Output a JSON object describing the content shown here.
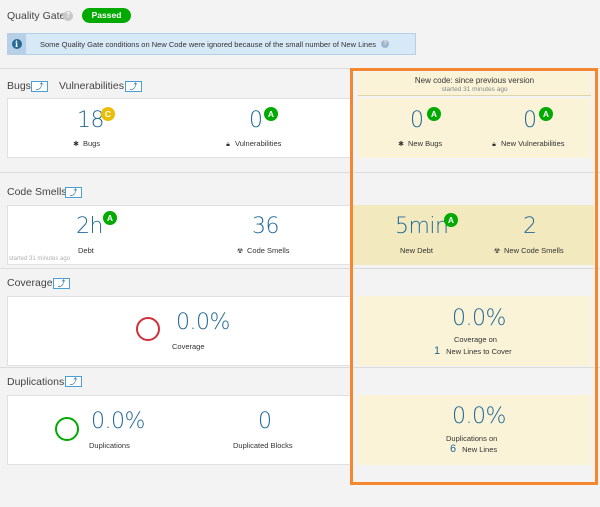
{
  "quality_gate": {
    "title": "Quality Gate",
    "status": "Passed",
    "help": "?"
  },
  "info_banner": {
    "icon": "i",
    "text": "Some Quality Gate conditions on New Code were ignored because of the small number of New Lines",
    "help": "?"
  },
  "sections": {
    "bugs_title": "Bugs",
    "vulns_title": "Vulnerabilities",
    "code_smells_title": "Code Smells",
    "coverage_title": "Coverage",
    "duplications_title": "Duplications"
  },
  "new_code": {
    "title": "New code: since previous version",
    "subtitle": "started 31 minutes ago"
  },
  "bugs": {
    "value": "18",
    "rating": "C",
    "label": "Bugs",
    "icon": "bug-icon"
  },
  "vulnerabilities": {
    "value": "0",
    "rating": "A",
    "label": "Vulnerabilities",
    "icon": "lock-icon"
  },
  "new_bugs": {
    "value": "0",
    "rating": "A",
    "label": "New Bugs"
  },
  "new_vulnerabilities": {
    "value": "0",
    "rating": "A",
    "label": "New Vulnerabilities"
  },
  "debt": {
    "value": "2h",
    "rating": "A",
    "label": "Debt",
    "started": "started 31 minutes ago"
  },
  "code_smells": {
    "value": "36",
    "label": "Code Smells",
    "icon": "code-smell-icon"
  },
  "new_debt": {
    "value": "5min",
    "rating": "A",
    "label": "New Debt"
  },
  "new_code_smells": {
    "value": "2",
    "label": "New Code Smells"
  },
  "coverage": {
    "value": "0.0%",
    "label": "Coverage",
    "ring_color": "#d02f3a"
  },
  "new_coverage": {
    "value": "0.0%",
    "label": "Coverage on",
    "lines": "1",
    "lines_label": "New Lines to Cover"
  },
  "duplications": {
    "value": "0.0%",
    "label": "Duplications",
    "ring_color": "#00aa00"
  },
  "duplicated_blocks": {
    "value": "0",
    "label": "Duplicated Blocks"
  },
  "new_duplications": {
    "value": "0.0%",
    "label": "Duplications on",
    "lines": "6",
    "lines_label": "New Lines"
  },
  "colors": {
    "accent": "#236a97",
    "passed": "#00aa00",
    "rating_a": "#00aa00",
    "rating_c": "#eabe06",
    "highlight": "#f5882f",
    "new_code_bg": "#faf3d7"
  }
}
